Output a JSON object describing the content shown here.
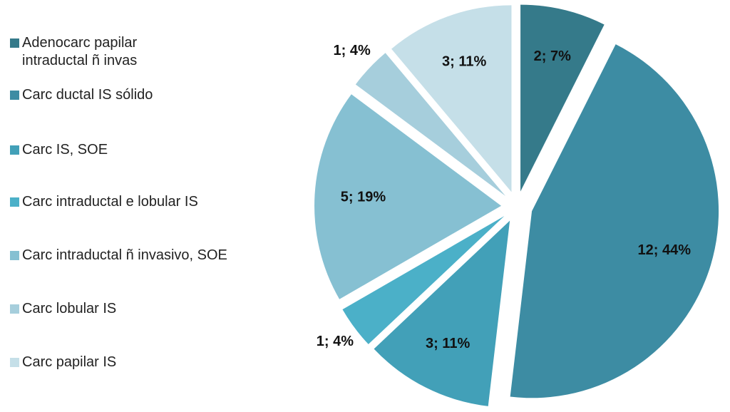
{
  "chart_data": {
    "type": "pie",
    "categories": [
      "Adenocarc papilar intraductal ñ invas",
      "Carc ductal IS sólido",
      "Carc IS, SOE",
      "Carc intraductal e lobular IS",
      "Carc intraductal ñ invasivo, SOE",
      "Carc lobular IS",
      "Carc papilar IS"
    ],
    "values": [
      2,
      12,
      3,
      1,
      5,
      1,
      3
    ],
    "value_labels": [
      "2; 7%",
      "12; 44%",
      "3; 11%",
      "1; 4%",
      "5; 19%",
      "1; 4%",
      "3; 11%"
    ],
    "colors": [
      "#357a8a",
      "#3d8ca3",
      "#42a0b8",
      "#4bb0c8",
      "#86c0d2",
      "#a6cedc",
      "#c5dfe8"
    ],
    "legend": "left"
  }
}
